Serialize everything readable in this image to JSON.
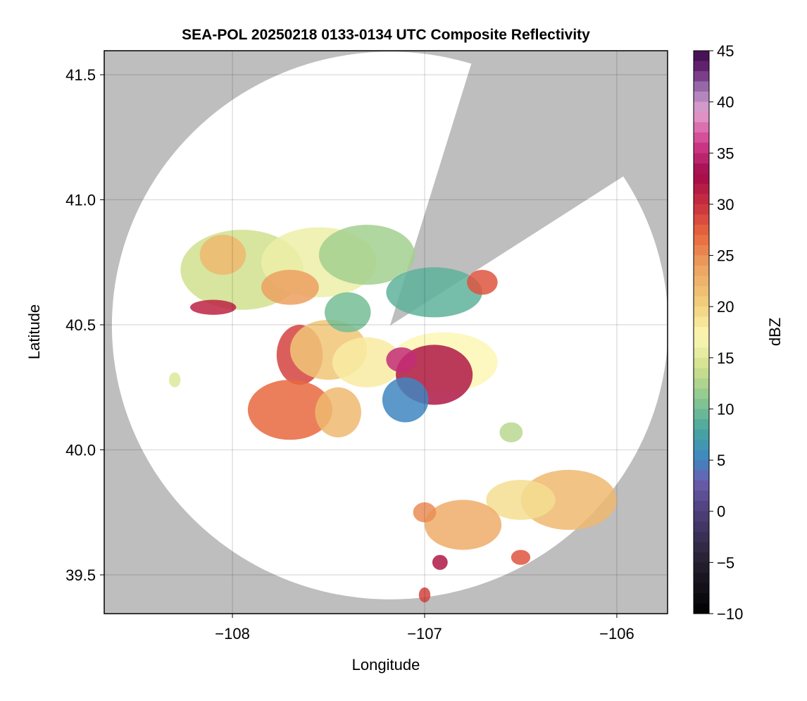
{
  "chart_data": {
    "type": "heatmap",
    "title": "SEA-POL 20250218 0133-0134 UTC Composite Reflectivity",
    "xlabel": "Longitude",
    "ylabel": "Latitude",
    "xlim": [
      -108.667,
      -105.736
    ],
    "ylim": [
      39.345,
      41.596
    ],
    "xticks": [
      -108,
      -107,
      -106
    ],
    "xtick_labels": [
      "−108",
      "−107",
      "−106"
    ],
    "yticks": [
      39.5,
      40.0,
      40.5,
      41.0,
      41.5
    ],
    "ytick_labels": [
      "39.5",
      "40.0",
      "40.5",
      "41.0",
      "41.5"
    ],
    "grid": true,
    "background_color": "#bebebe",
    "radar": {
      "lon": -107.18,
      "lat": 40.497,
      "range_deg_lon": 1.447,
      "range_deg_lat": 1.095,
      "blocked_sector_azimuth_deg": [
        17,
        57
      ]
    },
    "colorbar": {
      "label": "dBZ",
      "range": [
        -10,
        45
      ],
      "ticks": [
        -10,
        -5,
        0,
        5,
        10,
        15,
        20,
        25,
        30,
        35,
        40,
        45
      ],
      "tick_labels": [
        "−10",
        "−5",
        "0",
        "5",
        "10",
        "15",
        "20",
        "25",
        "30",
        "35",
        "40",
        "45"
      ],
      "stops": [
        [
          -10,
          "#000000"
        ],
        [
          -5,
          "#25202f"
        ],
        [
          0,
          "#4f3f7a"
        ],
        [
          3,
          "#6b5fb0"
        ],
        [
          5,
          "#3f86c0"
        ],
        [
          8,
          "#47a6a0"
        ],
        [
          11,
          "#8cc890"
        ],
        [
          14,
          "#d0e08e"
        ],
        [
          17,
          "#fbf7b4"
        ],
        [
          20,
          "#f2d27e"
        ],
        [
          24,
          "#eca060"
        ],
        [
          27,
          "#e8683e"
        ],
        [
          30,
          "#c93040"
        ],
        [
          33,
          "#a20a4a"
        ],
        [
          36,
          "#d23e8e"
        ],
        [
          39,
          "#e2a2d0"
        ],
        [
          41,
          "#a47cb8"
        ],
        [
          43,
          "#6c2a78"
        ],
        [
          45,
          "#3c0a4a"
        ]
      ]
    },
    "echoes": [
      {
        "lon": -107.95,
        "lat": 40.72,
        "rlon": 0.32,
        "rlat": 0.16,
        "dbz": 14
      },
      {
        "lon": -107.55,
        "lat": 40.75,
        "rlon": 0.3,
        "rlat": 0.14,
        "dbz": 16
      },
      {
        "lon": -107.3,
        "lat": 40.78,
        "rlon": 0.25,
        "rlat": 0.12,
        "dbz": 12
      },
      {
        "lon": -108.05,
        "lat": 40.78,
        "rlon": 0.12,
        "rlat": 0.08,
        "dbz": 22
      },
      {
        "lon": -107.7,
        "lat": 40.65,
        "rlon": 0.15,
        "rlat": 0.07,
        "dbz": 24
      },
      {
        "lon": -108.1,
        "lat": 40.57,
        "rlon": 0.12,
        "rlat": 0.03,
        "dbz": 31
      },
      {
        "lon": -107.65,
        "lat": 40.38,
        "rlon": 0.12,
        "rlat": 0.12,
        "dbz": 29
      },
      {
        "lon": -107.5,
        "lat": 40.4,
        "rlon": 0.2,
        "rlat": 0.12,
        "dbz": 21
      },
      {
        "lon": -107.7,
        "lat": 40.16,
        "rlon": 0.22,
        "rlat": 0.12,
        "dbz": 27
      },
      {
        "lon": -107.45,
        "lat": 40.15,
        "rlon": 0.12,
        "rlat": 0.1,
        "dbz": 22
      },
      {
        "lon": -107.3,
        "lat": 40.35,
        "rlon": 0.18,
        "rlat": 0.1,
        "dbz": 18
      },
      {
        "lon": -107.4,
        "lat": 40.55,
        "rlon": 0.12,
        "rlat": 0.08,
        "dbz": 10
      },
      {
        "lon": -106.95,
        "lat": 40.63,
        "rlon": 0.25,
        "rlat": 0.1,
        "dbz": 9
      },
      {
        "lon": -106.9,
        "lat": 40.35,
        "rlon": 0.28,
        "rlat": 0.12,
        "dbz": 17
      },
      {
        "lon": -106.95,
        "lat": 40.3,
        "rlon": 0.2,
        "rlat": 0.12,
        "dbz": 32
      },
      {
        "lon": -107.1,
        "lat": 40.2,
        "rlon": 0.12,
        "rlat": 0.09,
        "dbz": 5
      },
      {
        "lon": -107.12,
        "lat": 40.36,
        "rlon": 0.08,
        "rlat": 0.05,
        "dbz": 35
      },
      {
        "lon": -106.7,
        "lat": 40.67,
        "rlon": 0.08,
        "rlat": 0.05,
        "dbz": 28
      },
      {
        "lon": -106.55,
        "lat": 40.07,
        "rlon": 0.06,
        "rlat": 0.04,
        "dbz": 13
      },
      {
        "lon": -106.25,
        "lat": 39.8,
        "rlon": 0.25,
        "rlat": 0.12,
        "dbz": 22
      },
      {
        "lon": -106.5,
        "lat": 39.8,
        "rlon": 0.18,
        "rlat": 0.08,
        "dbz": 19
      },
      {
        "lon": -106.8,
        "lat": 39.7,
        "rlon": 0.2,
        "rlat": 0.1,
        "dbz": 23
      },
      {
        "lon": -107.0,
        "lat": 39.75,
        "rlon": 0.06,
        "rlat": 0.04,
        "dbz": 25
      },
      {
        "lon": -106.5,
        "lat": 39.57,
        "rlon": 0.05,
        "rlat": 0.03,
        "dbz": 28
      },
      {
        "lon": -106.92,
        "lat": 39.55,
        "rlon": 0.04,
        "rlat": 0.03,
        "dbz": 32
      },
      {
        "lon": -107.0,
        "lat": 39.42,
        "rlon": 0.03,
        "rlat": 0.03,
        "dbz": 29
      },
      {
        "lon": -108.3,
        "lat": 40.28,
        "rlon": 0.03,
        "rlat": 0.03,
        "dbz": 15
      }
    ]
  }
}
